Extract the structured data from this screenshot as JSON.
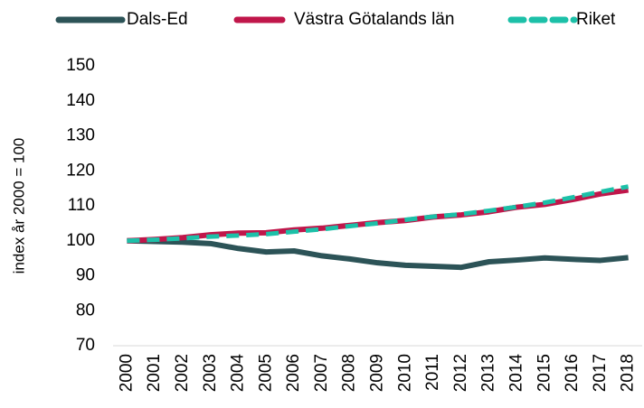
{
  "chart_data": {
    "type": "line",
    "y_label": "index år 2000 = 100",
    "categories": [
      "2000",
      "2001",
      "2002",
      "2003",
      "2004",
      "2005",
      "2006",
      "2007",
      "2008",
      "2009",
      "2010",
      "2011",
      "2012",
      "2013",
      "2014",
      "2015",
      "2016",
      "2017",
      "2018"
    ],
    "series": [
      {
        "name": "Dals-Ed",
        "color": "#2c5357",
        "dash": false,
        "values": [
          100,
          99.8,
          99.6,
          99.2,
          97.8,
          96.8,
          97.1,
          95.7,
          94.8,
          93.7,
          93,
          92.7,
          92.4,
          94,
          94.5,
          95.1,
          94.7,
          94.4,
          95.2
        ]
      },
      {
        "name": "Västra Götalands län",
        "color": "#c0164a",
        "dash": false,
        "values": [
          100,
          100.4,
          100.9,
          101.7,
          102.2,
          102.3,
          103.1,
          103.6,
          104.4,
          105.2,
          105.8,
          106.8,
          107.4,
          108.3,
          109.6,
          110.4,
          111.8,
          113.4,
          114.5
        ]
      },
      {
        "name": "Riket",
        "color": "#1cc0a8",
        "dash": true,
        "values": [
          100,
          100.3,
          100.7,
          101.2,
          101.5,
          101.9,
          102.6,
          103.3,
          104.2,
          105,
          106,
          106.9,
          107.6,
          108.6,
          109.7,
          110.9,
          112.4,
          114,
          115.5
        ]
      }
    ],
    "ylim": [
      70,
      150
    ],
    "yticks": [
      70,
      80,
      90,
      100,
      110,
      120,
      130,
      140,
      150
    ],
    "grid": false,
    "legend": "top"
  }
}
